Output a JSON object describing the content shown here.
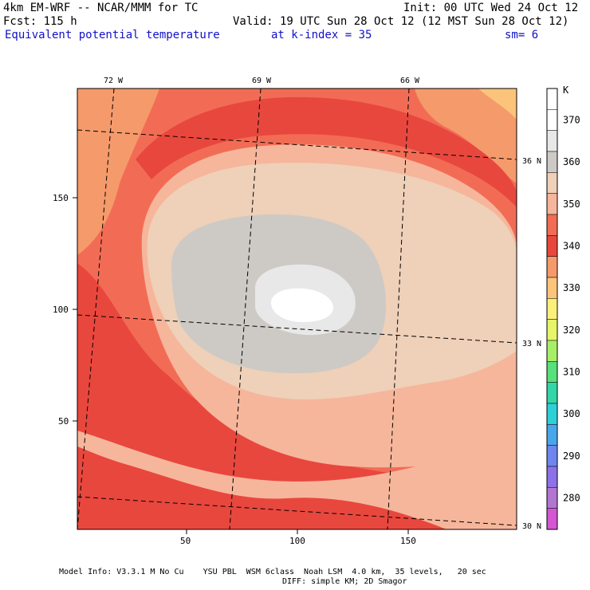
{
  "header": {
    "model_title": "4km EM-WRF -- NCAR/MMM for TC",
    "init_time": "Init: 00 UTC Wed 24 Oct 12",
    "forecast_hour": "Fcst: 115 h",
    "valid_time": "Valid: 19 UTC Sun 28 Oct 12 (12 MST Sun 28 Oct 12)",
    "field_name": "Equivalent potential temperature",
    "level": "at k-index = 35",
    "smoothing": "sm= 6"
  },
  "map": {
    "longitude_labels": [
      "72 W",
      "69 W",
      "66 W"
    ],
    "latitude_labels": [
      "36 N",
      "33 N",
      "30 N"
    ],
    "x_tick_labels": [
      "50",
      "100",
      "150"
    ],
    "y_tick_labels": [
      "150",
      "100",
      "50"
    ]
  },
  "colorbar": {
    "unit": "K",
    "levels": [
      {
        "label": "",
        "color": "#ffffff"
      },
      {
        "label": "370",
        "color": "#ffffff"
      },
      {
        "label": "",
        "color": "#e8e8e8"
      },
      {
        "label": "360",
        "color": "#cdcac5"
      },
      {
        "label": "",
        "color": "#efd0b8"
      },
      {
        "label": "350",
        "color": "#f6b69b"
      },
      {
        "label": "",
        "color": "#f26c55"
      },
      {
        "label": "340",
        "color": "#e8473e"
      },
      {
        "label": "",
        "color": "#f59a6a"
      },
      {
        "label": "330",
        "color": "#fbc47a"
      },
      {
        "label": "",
        "color": "#fdf07a"
      },
      {
        "label": "320",
        "color": "#e6f56a"
      },
      {
        "label": "",
        "color": "#a8ef68"
      },
      {
        "label": "310",
        "color": "#58e07a"
      },
      {
        "label": "",
        "color": "#34d6a8"
      },
      {
        "label": "300",
        "color": "#2ed0d8"
      },
      {
        "label": "",
        "color": "#4aa6ea"
      },
      {
        "label": "290",
        "color": "#6e86ee"
      },
      {
        "label": "",
        "color": "#8c72e6"
      },
      {
        "label": "280",
        "color": "#b276d2"
      },
      {
        "label": "",
        "color": "#d456d2"
      }
    ]
  },
  "footer": {
    "model_info": "Model Info: V3.3.1 M No Cu    YSU PBL  WSM 6class  Noah LSM  4.0 km,  35 levels,   20 sec",
    "diffusion": "DIFF: simple KM; 2D Smagor"
  }
}
